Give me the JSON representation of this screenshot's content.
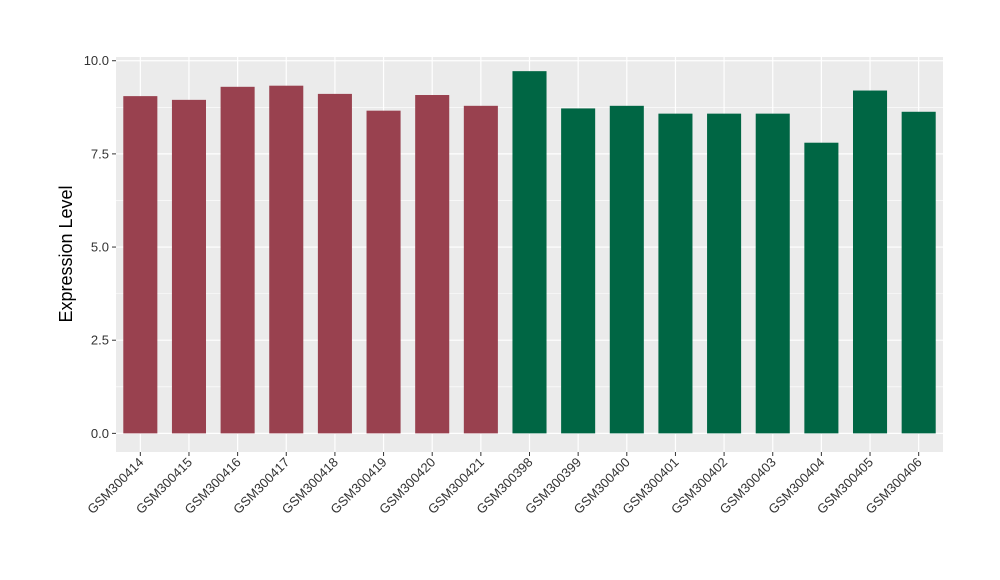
{
  "chart_data": {
    "type": "bar",
    "title": "",
    "xlabel": "",
    "ylabel": "Expression Level",
    "ylim": [
      -0.5,
      10.1
    ],
    "yticks": [
      0.0,
      2.5,
      5.0,
      7.5,
      10.0
    ],
    "ytick_labels": [
      "0.0",
      "2.5",
      "5.0",
      "7.5",
      "10.0"
    ],
    "grid": true,
    "categories": [
      "GSM300414",
      "GSM300415",
      "GSM300416",
      "GSM300417",
      "GSM300418",
      "GSM300419",
      "GSM300420",
      "GSM300421",
      "GSM300398",
      "GSM300399",
      "GSM300400",
      "GSM300401",
      "GSM300402",
      "GSM300403",
      "GSM300404",
      "GSM300405",
      "GSM300406"
    ],
    "values": [
      9.05,
      8.95,
      9.3,
      9.33,
      9.11,
      8.66,
      9.08,
      8.79,
      9.72,
      8.72,
      8.79,
      8.58,
      8.58,
      8.58,
      7.8,
      9.2,
      8.63
    ],
    "bar_colors": [
      "#99414f",
      "#99414f",
      "#99414f",
      "#99414f",
      "#99414f",
      "#99414f",
      "#99414f",
      "#99414f",
      "#006644",
      "#006644",
      "#006644",
      "#006644",
      "#006644",
      "#006644",
      "#006644",
      "#006644",
      "#006644"
    ],
    "panel_background": "#ebebeb",
    "grid_color": "#ffffff"
  }
}
